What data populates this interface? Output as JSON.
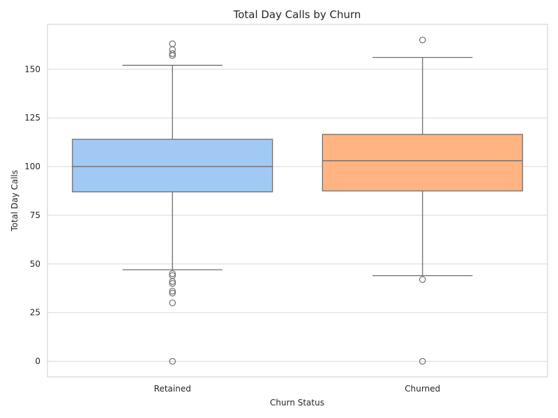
{
  "chart_data": {
    "type": "box",
    "title": "Total Day Calls by Churn",
    "xlabel": "Churn Status",
    "ylabel": "Total Day Calls",
    "ylim": [
      -8,
      173
    ],
    "yticks": [
      0,
      25,
      50,
      75,
      100,
      125,
      150
    ],
    "grid": true,
    "categories": [
      "Retained",
      "Churned"
    ],
    "series": [
      {
        "category": "Retained",
        "color": "#a1c9f4",
        "whisker_low": 47,
        "q1": 87,
        "median": 100,
        "q3": 114,
        "whisker_high": 152,
        "outliers": [
          163,
          160,
          158,
          157,
          45,
          44,
          41,
          40,
          36,
          35,
          30,
          0
        ]
      },
      {
        "category": "Churned",
        "color": "#ffb482",
        "whisker_low": 44,
        "q1": 87.5,
        "median": 103,
        "q3": 116.5,
        "whisker_high": 156,
        "outliers": [
          165,
          42,
          0
        ]
      }
    ]
  }
}
